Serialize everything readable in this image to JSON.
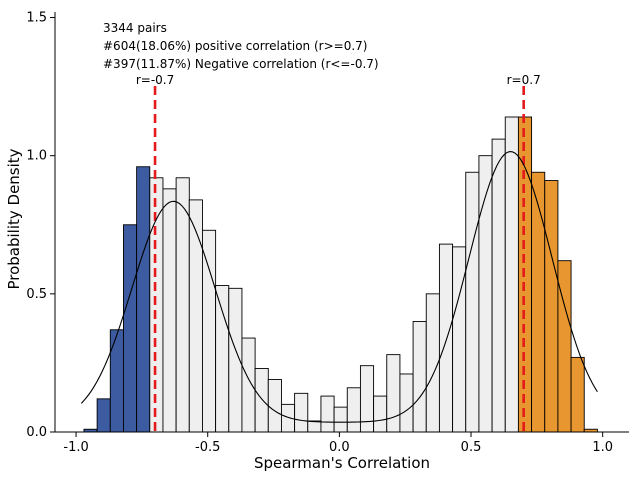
{
  "chart_data": {
    "type": "histogram",
    "title": "",
    "xlabel": "Spearman's Correlation",
    "ylabel": "Probability Density",
    "xlim": [
      -1.08,
      1.1
    ],
    "ylim": [
      0,
      1.52
    ],
    "xticks": [
      -1.0,
      -0.5,
      0.0,
      0.5,
      1.0
    ],
    "xtick_labels": [
      "-1.0",
      "-0.5",
      "0.0",
      "0.5",
      "1.0"
    ],
    "yticks": [
      0.0,
      0.5,
      1.0,
      1.5
    ],
    "ytick_labels": [
      "0.0",
      "0.5",
      "1.0",
      "1.5"
    ],
    "bin_start": -0.97,
    "bin_width": 0.05,
    "densities": [
      0.01,
      0.12,
      0.37,
      0.75,
      0.96,
      0.92,
      0.88,
      0.92,
      0.84,
      0.73,
      0.53,
      0.52,
      0.34,
      0.23,
      0.19,
      0.1,
      0.14,
      0.04,
      0.13,
      0.09,
      0.16,
      0.24,
      0.13,
      0.28,
      0.21,
      0.4,
      0.5,
      0.68,
      0.67,
      0.94,
      1.0,
      1.06,
      1.14,
      1.14,
      0.94,
      0.91,
      0.62,
      0.27,
      0.01
    ],
    "colors": {
      "negative": "#3c5ba0",
      "neutral": "#efefef",
      "positive": "#e8962f",
      "kde": "#000000",
      "threshold_line": "#e41a1c"
    },
    "thresholds": [
      {
        "value": -0.7,
        "label": "r=-0.7"
      },
      {
        "value": 0.7,
        "label": "r=0.7"
      }
    ],
    "kde": {
      "x_start": -0.98,
      "x_end": 0.98,
      "components": [
        {
          "mu": -0.63,
          "sigma": 0.158,
          "amplitude": 0.8
        },
        {
          "mu": 0.65,
          "sigma": 0.158,
          "amplitude": 0.98
        }
      ],
      "baseline": 0.035
    },
    "annotations": [
      "3344 pairs",
      "#604(18.06%) positive correlation (r>=0.7)",
      "#397(11.87%) Negative correlation (r<=-0.7)"
    ]
  }
}
